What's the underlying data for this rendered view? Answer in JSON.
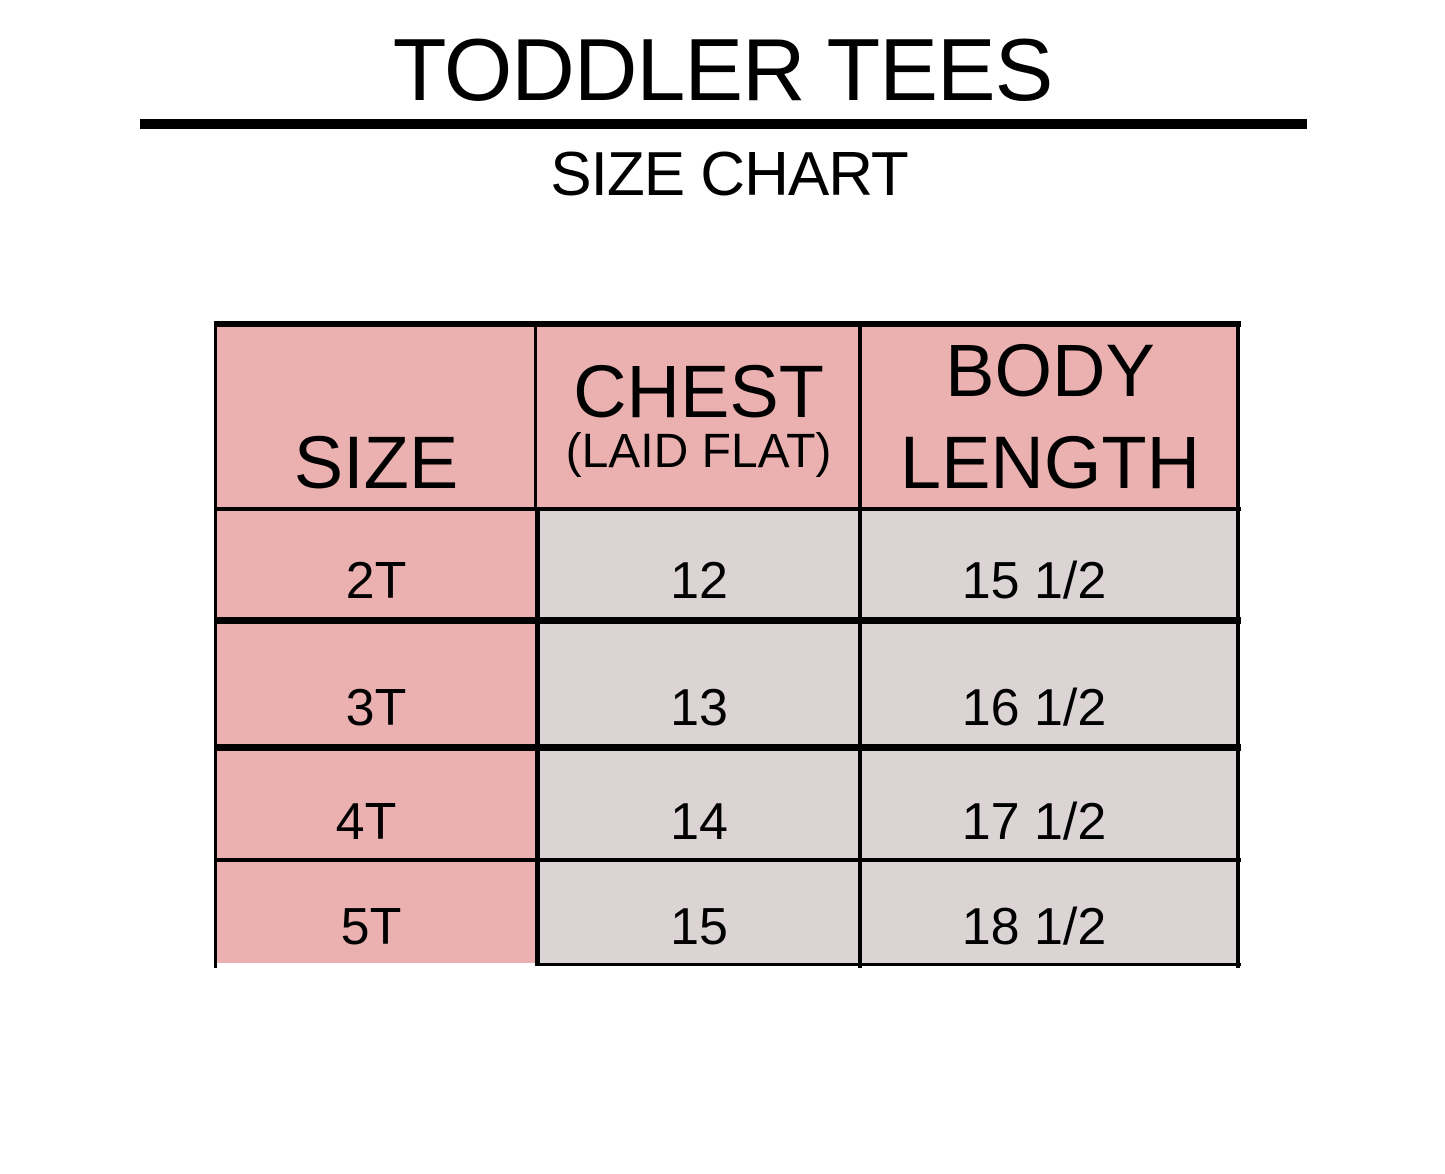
{
  "header": {
    "title": "TODDLER TEES",
    "subtitle": "SIZE CHART"
  },
  "colors": {
    "header_bg": "#ebb1b1",
    "size_column_bg": "#ebb1b1",
    "data_bg": "#dcd4d4",
    "border": "#000000"
  },
  "table": {
    "columns": [
      {
        "label": "SIZE",
        "sublabel": ""
      },
      {
        "label": "CHEST",
        "sublabel": "(LAID FLAT)"
      },
      {
        "label": "BODY",
        "label2": "LENGTH"
      }
    ],
    "rows": [
      {
        "size": "2T",
        "chest": "12",
        "length": "15 1/2"
      },
      {
        "size": "3T",
        "chest": "13",
        "length": "16 1/2"
      },
      {
        "size": "4T",
        "chest": "14",
        "length": "17 1/2"
      },
      {
        "size": "5T",
        "chest": "15",
        "length": "18 1/2"
      }
    ]
  }
}
